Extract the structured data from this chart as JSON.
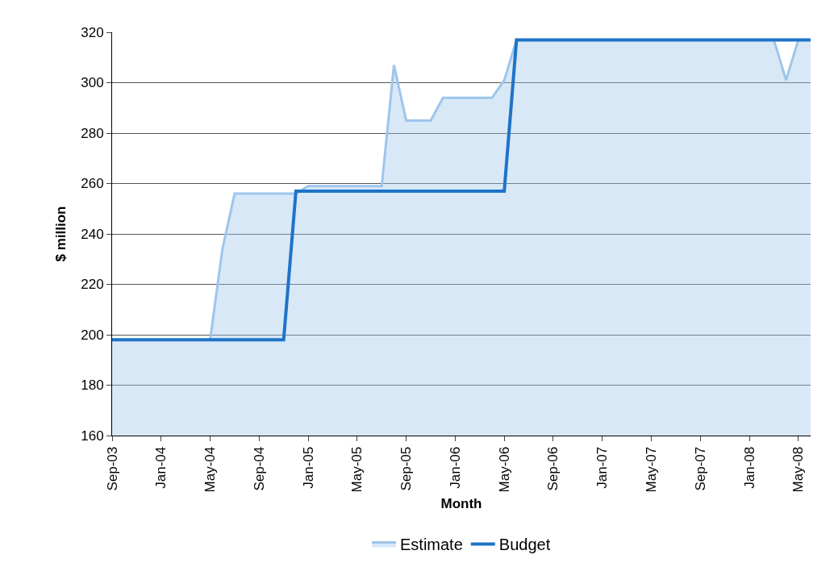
{
  "chart_data": {
    "type": "line",
    "xlabel": "Month",
    "ylabel": "$ million",
    "categories": [
      "Sep-03",
      null,
      null,
      null,
      "Jan-04",
      null,
      null,
      null,
      "May-04",
      null,
      null,
      null,
      "Sep-04",
      null,
      null,
      null,
      "Jan-05",
      null,
      null,
      null,
      "May-05",
      null,
      null,
      null,
      "Sep-05",
      null,
      null,
      null,
      "Jan-06",
      null,
      null,
      null,
      "May-06",
      null,
      null,
      null,
      "Sep-06",
      null,
      null,
      null,
      "Jan-07",
      null,
      null,
      null,
      "May-07",
      null,
      null,
      null,
      "Sep-07",
      null,
      null,
      null,
      "Jan-08",
      null,
      null,
      null,
      "May-08",
      null
    ],
    "series": [
      {
        "name": "Estimate",
        "type": "area",
        "color": "#9ec5ec",
        "values": [
          198,
          198,
          198,
          198,
          198,
          198,
          198,
          198,
          198,
          234,
          256,
          256,
          256,
          256,
          256,
          256,
          259,
          259,
          259,
          259,
          259,
          259,
          259,
          307,
          285,
          285,
          285,
          294,
          294,
          294,
          294,
          294,
          301,
          317,
          317,
          317,
          317,
          317,
          317,
          317,
          317,
          317,
          317,
          317,
          317,
          317,
          317,
          317,
          317,
          317,
          317,
          317,
          317,
          317,
          317,
          301,
          317,
          317
        ]
      },
      {
        "name": "Budget",
        "color": "#1e73c8",
        "values": [
          198,
          198,
          198,
          198,
          198,
          198,
          198,
          198,
          198,
          198,
          198,
          198,
          198,
          198,
          198,
          257,
          257,
          257,
          257,
          257,
          257,
          257,
          257,
          257,
          257,
          257,
          257,
          257,
          257,
          257,
          257,
          257,
          257,
          317,
          317,
          317,
          317,
          317,
          317,
          317,
          317,
          317,
          317,
          317,
          317,
          317,
          317,
          317,
          317,
          317,
          317,
          317,
          317,
          317,
          317,
          317,
          317,
          317
        ]
      }
    ],
    "ylim": [
      160,
      320
    ],
    "yticks": [
      160,
      180,
      200,
      220,
      240,
      260,
      280,
      300,
      320
    ],
    "grid": "y",
    "legend": "bottom"
  }
}
